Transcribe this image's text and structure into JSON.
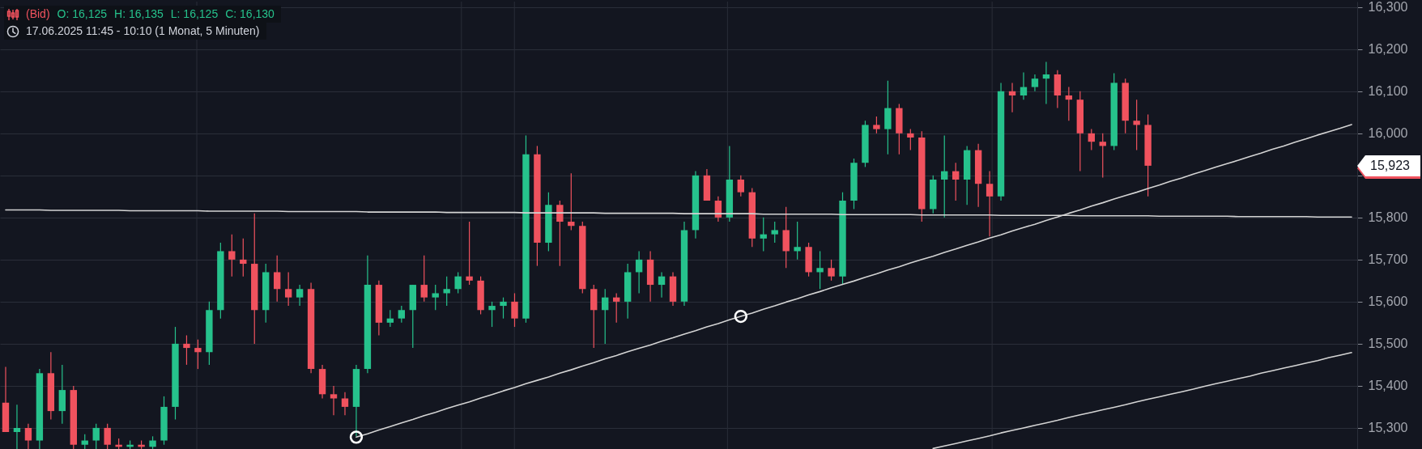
{
  "chart_data": {
    "type": "candlestick",
    "title": "(Bid)",
    "subtitle": "17.06.2025 11:45 - 10:10 (1 Monat, 5 Minuten)",
    "annotations": [
      "O: 16,125",
      "H: 16,135",
      "L: 16,125",
      "C: 16,130",
      "15,923"
    ],
    "categories": [
      null,
      null,
      null,
      null,
      null,
      null,
      null,
      null,
      null,
      null,
      null,
      null,
      null,
      null,
      null,
      null,
      null,
      null,
      null,
      null,
      null,
      null,
      null,
      null,
      null,
      null,
      null,
      null,
      null,
      null,
      null,
      null,
      null,
      null,
      null,
      null,
      null,
      null,
      null,
      null,
      null,
      null,
      null,
      null,
      null,
      null,
      null,
      null,
      null,
      null,
      null,
      null,
      null,
      null,
      null,
      null,
      null,
      null,
      null,
      null,
      null,
      null,
      null,
      null,
      null,
      null,
      null,
      null,
      null,
      null,
      null,
      null,
      null,
      null,
      null,
      null,
      null,
      null,
      null,
      null,
      null,
      null,
      null,
      null,
      null,
      null,
      null,
      null,
      null,
      null,
      null,
      null,
      null,
      null,
      null,
      null,
      null,
      null,
      null,
      null,
      null,
      null,
      null,
      null,
      null,
      null,
      null,
      null,
      null,
      null,
      null,
      null,
      null,
      null,
      null,
      null,
      null,
      null,
      null,
      null
    ],
    "ohlc": [
      [
        15360,
        15445,
        15290,
        15290
      ],
      [
        15290,
        15355,
        15250,
        15300
      ],
      [
        15300,
        15310,
        15250,
        15270
      ],
      [
        15270,
        15440,
        15250,
        15430
      ],
      [
        15430,
        15480,
        15320,
        15340
      ],
      [
        15340,
        15450,
        15310,
        15390
      ],
      [
        15390,
        15400,
        15250,
        15260
      ],
      [
        15260,
        15285,
        15250,
        15270
      ],
      [
        15270,
        15310,
        15250,
        15300
      ],
      [
        15300,
        15310,
        15250,
        15260
      ],
      [
        15260,
        15275,
        15250,
        15255
      ],
      [
        15255,
        15270,
        15250,
        15260
      ],
      [
        15260,
        15270,
        15250,
        15255
      ],
      [
        15255,
        15280,
        15250,
        15270
      ],
      [
        15270,
        15375,
        15260,
        15350
      ],
      [
        15350,
        15540,
        15320,
        15500
      ],
      [
        15500,
        15520,
        15450,
        15490
      ],
      [
        15490,
        15510,
        15440,
        15480
      ],
      [
        15480,
        15600,
        15450,
        15580
      ],
      [
        15580,
        15740,
        15560,
        15720
      ],
      [
        15720,
        15760,
        15660,
        15700
      ],
      [
        15700,
        15750,
        15660,
        15690
      ],
      [
        15690,
        15810,
        15500,
        15580
      ],
      [
        15580,
        15690,
        15550,
        15670
      ],
      [
        15670,
        15710,
        15600,
        15630
      ],
      [
        15630,
        15670,
        15590,
        15610
      ],
      [
        15610,
        15640,
        15590,
        15630
      ],
      [
        15630,
        15645,
        15430,
        15440
      ],
      [
        15440,
        15450,
        15370,
        15380
      ],
      [
        15380,
        15400,
        15330,
        15370
      ],
      [
        15370,
        15385,
        15330,
        15350
      ],
      [
        15350,
        15450,
        15280,
        15440
      ],
      [
        15440,
        15710,
        15430,
        15640
      ],
      [
        15640,
        15650,
        15520,
        15550
      ],
      [
        15550,
        15580,
        15540,
        15560
      ],
      [
        15560,
        15590,
        15550,
        15580
      ],
      [
        15580,
        15640,
        15490,
        15640
      ],
      [
        15640,
        15710,
        15600,
        15610
      ],
      [
        15610,
        15640,
        15580,
        15620
      ],
      [
        15620,
        15660,
        15590,
        15630
      ],
      [
        15630,
        15670,
        15620,
        15660
      ],
      [
        15660,
        15790,
        15640,
        15650
      ],
      [
        15650,
        15660,
        15570,
        15580
      ],
      [
        15580,
        15600,
        15540,
        15590
      ],
      [
        15590,
        15610,
        15560,
        15600
      ],
      [
        15600,
        15620,
        15540,
        15560
      ],
      [
        15560,
        15995,
        15550,
        15950
      ],
      [
        15950,
        15970,
        15685,
        15740
      ],
      [
        15740,
        15860,
        15720,
        15830
      ],
      [
        15830,
        15840,
        15685,
        15790
      ],
      [
        15790,
        15905,
        15770,
        15780
      ],
      [
        15780,
        15790,
        15620,
        15630
      ],
      [
        15630,
        15640,
        15490,
        15580
      ],
      [
        15580,
        15630,
        15500,
        15610
      ],
      [
        15610,
        15620,
        15550,
        15600
      ],
      [
        15600,
        15690,
        15560,
        15670
      ],
      [
        15670,
        15720,
        15620,
        15700
      ],
      [
        15700,
        15720,
        15600,
        15640
      ],
      [
        15640,
        15670,
        15610,
        15660
      ],
      [
        15660,
        15670,
        15590,
        15600
      ],
      [
        15600,
        15790,
        15590,
        15770
      ],
      [
        15770,
        15910,
        15750,
        15900
      ],
      [
        15900,
        15915,
        15840,
        15840
      ],
      [
        15840,
        15850,
        15790,
        15800
      ],
      [
        15800,
        15970,
        15790,
        15890
      ],
      [
        15890,
        15900,
        15850,
        15860
      ],
      [
        15860,
        15870,
        15730,
        15750
      ],
      [
        15750,
        15800,
        15720,
        15760
      ],
      [
        15760,
        15790,
        15740,
        15770
      ],
      [
        15770,
        15825,
        15680,
        15720
      ],
      [
        15720,
        15790,
        15700,
        15730
      ],
      [
        15730,
        15740,
        15660,
        15670
      ],
      [
        15670,
        15720,
        15630,
        15680
      ],
      [
        15680,
        15700,
        15650,
        15660
      ],
      [
        15660,
        15860,
        15640,
        15840
      ],
      [
        15840,
        15940,
        15820,
        15930
      ],
      [
        15930,
        16030,
        15920,
        16020
      ],
      [
        16020,
        16040,
        16000,
        16010
      ],
      [
        16010,
        16125,
        15950,
        16060
      ],
      [
        16060,
        16070,
        15950,
        16000
      ],
      [
        16000,
        16010,
        15960,
        15990
      ],
      [
        15990,
        16005,
        15790,
        15820
      ],
      [
        15820,
        15900,
        15810,
        15890
      ],
      [
        15890,
        15995,
        15800,
        15910
      ],
      [
        15910,
        15930,
        15840,
        15890
      ],
      [
        15890,
        15970,
        15830,
        15960
      ],
      [
        15960,
        15975,
        15825,
        15880
      ],
      [
        15880,
        15910,
        15755,
        15850
      ],
      [
        15850,
        16120,
        15840,
        16100
      ],
      [
        16100,
        16120,
        16050,
        16090
      ],
      [
        16090,
        16145,
        16080,
        16110
      ],
      [
        16110,
        16140,
        16100,
        16130
      ],
      [
        16130,
        16170,
        16070,
        16140
      ],
      [
        16140,
        16150,
        16060,
        16090
      ],
      [
        16090,
        16110,
        16030,
        16080
      ],
      [
        16080,
        16100,
        15910,
        16000
      ],
      [
        16000,
        16010,
        15960,
        15980
      ],
      [
        15980,
        16000,
        15895,
        15970
      ],
      [
        15970,
        16143,
        15960,
        16120
      ],
      [
        16120,
        16130,
        16000,
        16030
      ],
      [
        16030,
        16080,
        15960,
        16020
      ],
      [
        16020,
        16045,
        15850,
        15923
      ],
      null,
      null,
      null,
      null,
      null,
      null,
      null,
      null,
      null,
      null,
      null,
      null,
      null,
      null,
      null,
      null,
      null,
      null
    ],
    "colors": [
      "#f0525e",
      "#26c28c",
      "#f0525e",
      "#26c28c",
      "#f0525e",
      "#26c28c",
      "#f0525e",
      "#26c28c",
      "#26c28c",
      "#f0525e",
      "#f0525e",
      "#26c28c",
      "#f0525e",
      "#26c28c",
      "#26c28c",
      "#26c28c",
      "#f0525e",
      "#f0525e",
      "#26c28c",
      "#26c28c",
      "#f0525e",
      "#f0525e",
      "#f0525e",
      "#26c28c",
      "#f0525e",
      "#f0525e",
      "#26c28c",
      "#f0525e",
      "#f0525e",
      "#f0525e",
      "#f0525e",
      "#26c28c",
      "#26c28c",
      "#f0525e",
      "#26c28c",
      "#26c28c",
      "#26c28c",
      "#f0525e",
      "#26c28c",
      "#26c28c",
      "#26c28c",
      "#f0525e",
      "#f0525e",
      "#26c28c",
      "#26c28c",
      "#f0525e",
      "#26c28c",
      "#f0525e",
      "#26c28c",
      "#f0525e",
      "#f0525e",
      "#f0525e",
      "#f0525e",
      "#26c28c",
      "#f0525e",
      "#26c28c",
      "#26c28c",
      "#f0525e",
      "#26c28c",
      "#f0525e",
      "#26c28c",
      "#26c28c",
      "#f0525e",
      "#f0525e",
      "#26c28c",
      "#f0525e",
      "#f0525e",
      "#26c28c",
      "#26c28c",
      "#f0525e",
      "#26c28c",
      "#f0525e",
      "#26c28c",
      "#f0525e",
      "#26c28c",
      "#26c28c",
      "#26c28c",
      "#f0525e",
      "#26c28c",
      "#f0525e",
      "#f0525e",
      "#f0525e",
      "#26c28c",
      "#26c28c",
      "#f0525e",
      "#26c28c",
      "#f0525e",
      "#f0525e",
      "#26c28c",
      "#f0525e",
      "#26c28c",
      "#26c28c",
      "#26c28c",
      "#f0525e",
      "#f0525e",
      "#f0525e",
      "#f0525e",
      "#f0525e",
      "#26c28c",
      "#f0525e",
      "#f0525e",
      "#f0525e",
      null,
      null,
      null,
      null,
      null,
      null,
      null,
      null,
      null,
      null,
      null,
      null,
      null,
      null,
      null,
      null,
      null,
      null
    ],
    "series": [
      {
        "type": "line",
        "color": "#d4d4d4",
        "values": [
          15818,
          15818,
          15818,
          15818,
          15817,
          15817,
          15817,
          15817,
          15817,
          15817,
          15817,
          15816,
          15816,
          15816,
          15816,
          15816,
          15816,
          15816,
          15815,
          15815,
          15815,
          15815,
          15815,
          15815,
          15815,
          15814,
          15814,
          15814,
          15814,
          15814,
          15814,
          15814,
          15813,
          15813,
          15813,
          15813,
          15813,
          15813,
          15813,
          15812,
          15812,
          15812,
          15812,
          15812,
          15812,
          15812,
          15811,
          15811,
          15811,
          15811,
          15811,
          15811,
          15811,
          15810,
          15810,
          15810,
          15810,
          15810,
          15810,
          15810,
          15809,
          15809,
          15809,
          15809,
          15809,
          15809,
          15809,
          15808,
          15808,
          15808,
          15808,
          15808,
          15808,
          15808,
          15807,
          15807,
          15807,
          15807,
          15807,
          15807,
          15807,
          15806,
          15806,
          15806,
          15806,
          15806,
          15806,
          15806,
          15805,
          15805,
          15805,
          15805,
          15805,
          15805,
          15805,
          15804,
          15804,
          15804,
          15804,
          15804,
          15804,
          15804,
          15803,
          15803,
          15803,
          15803,
          15803,
          15803,
          15803,
          15802,
          15802,
          15802,
          15802,
          15802,
          15802,
          15802,
          15801,
          15801,
          15801,
          15801
        ]
      },
      {
        "type": "line",
        "color": "#d4d4d4",
        "values": [
          null,
          null,
          null,
          null,
          null,
          null,
          null,
          null,
          null,
          null,
          null,
          null,
          null,
          null,
          null,
          null,
          null,
          null,
          null,
          null,
          null,
          null,
          null,
          null,
          null,
          null,
          null,
          null,
          null,
          null,
          null,
          15278,
          15286,
          15295,
          15303,
          15312,
          15320,
          15329,
          15337,
          15346,
          15354,
          15362,
          15371,
          15379,
          15388,
          15396,
          15405,
          15413,
          15421,
          15430,
          15438,
          15447,
          15455,
          15464,
          15472,
          15481,
          15489,
          15497,
          15506,
          15514,
          15523,
          15531,
          15540,
          15548,
          15557,
          15565,
          15573,
          15582,
          15590,
          15599,
          15607,
          15616,
          15624,
          15633,
          15641,
          15649,
          15658,
          15666,
          15675,
          15683,
          15692,
          15700,
          15708,
          15717,
          15725,
          15734,
          15742,
          15751,
          15759,
          15768,
          15776,
          15784,
          15793,
          15801,
          15810,
          15818,
          15827,
          15835,
          15844,
          15852,
          15860,
          15869,
          15877,
          15886,
          15894,
          15903,
          15911,
          15920,
          15928,
          15936,
          15945,
          15953,
          15962,
          15970,
          15979,
          15987,
          15996,
          16004,
          16012,
          16021
        ]
      },
      {
        "type": "line",
        "color": "#d4d4d4",
        "values": [
          null,
          null,
          null,
          null,
          null,
          null,
          null,
          null,
          null,
          null,
          null,
          null,
          null,
          null,
          null,
          null,
          null,
          null,
          null,
          null,
          null,
          null,
          null,
          null,
          null,
          null,
          null,
          null,
          null,
          null,
          null,
          null,
          null,
          null,
          null,
          null,
          null,
          null,
          null,
          null,
          null,
          null,
          null,
          null,
          null,
          null,
          null,
          null,
          null,
          null,
          null,
          null,
          null,
          null,
          null,
          null,
          null,
          null,
          null,
          null,
          null,
          null,
          null,
          null,
          null,
          null,
          null,
          null,
          null,
          null,
          null,
          null,
          null,
          null,
          null,
          null,
          null,
          null,
          null,
          null,
          null,
          null,
          15251,
          15257,
          15263,
          15269,
          15275,
          15281,
          15288,
          15294,
          15300,
          15306,
          15312,
          15318,
          15325,
          15331,
          15337,
          15343,
          15349,
          15355,
          15362,
          15368,
          15374,
          15380,
          15386,
          15392,
          15399,
          15405,
          15411,
          15417,
          15423,
          15430,
          15436,
          15442,
          15448,
          15454,
          15460,
          15467,
          15473,
          15479
        ]
      },
      {
        "type": "scatter",
        "color": "#ffffff",
        "marker": "circle",
        "values": [
          null,
          null,
          null,
          null,
          null,
          null,
          null,
          null,
          null,
          null,
          null,
          null,
          null,
          null,
          null,
          null,
          null,
          null,
          null,
          null,
          null,
          null,
          null,
          null,
          null,
          null,
          null,
          null,
          null,
          null,
          null,
          15278,
          null,
          null,
          null,
          null,
          null,
          null,
          null,
          null,
          null,
          null,
          null,
          null,
          null,
          null,
          null,
          null,
          null,
          null,
          null,
          null,
          null,
          null,
          null,
          null,
          null,
          null,
          null,
          null,
          null,
          null,
          null,
          null,
          null,
          15565,
          null,
          null,
          null,
          null,
          null,
          null,
          null,
          null,
          null,
          null,
          null,
          null,
          null,
          null,
          null,
          null,
          null,
          null,
          null,
          null,
          null,
          null,
          null,
          null,
          null,
          null,
          null,
          null,
          null,
          null,
          null,
          null,
          null,
          null,
          null,
          null,
          null,
          null,
          null,
          null,
          null,
          null,
          null,
          null,
          null,
          null,
          null,
          null,
          null,
          null,
          null,
          null,
          null,
          null
        ]
      }
    ],
    "ylim": [
      15246,
      16313
    ],
    "yticks": [
      {
        "value": 15300,
        "label": "15,300"
      },
      {
        "value": 15400,
        "label": "15,400"
      },
      {
        "value": 15500,
        "label": "15,500"
      },
      {
        "value": 15600,
        "label": "15,600"
      },
      {
        "value": 15700,
        "label": "15,700"
      },
      {
        "value": 15800,
        "label": "15,800"
      },
      {
        "value": 15900,
        "label": null
      },
      {
        "value": 16000,
        "label": "16,000"
      },
      {
        "value": 16100,
        "label": "16,100"
      },
      {
        "value": 16200,
        "label": "16,200"
      },
      {
        "value": 16300,
        "label": "16,300"
      }
    ],
    "grid": "y",
    "tick_labels": "y"
  }
}
